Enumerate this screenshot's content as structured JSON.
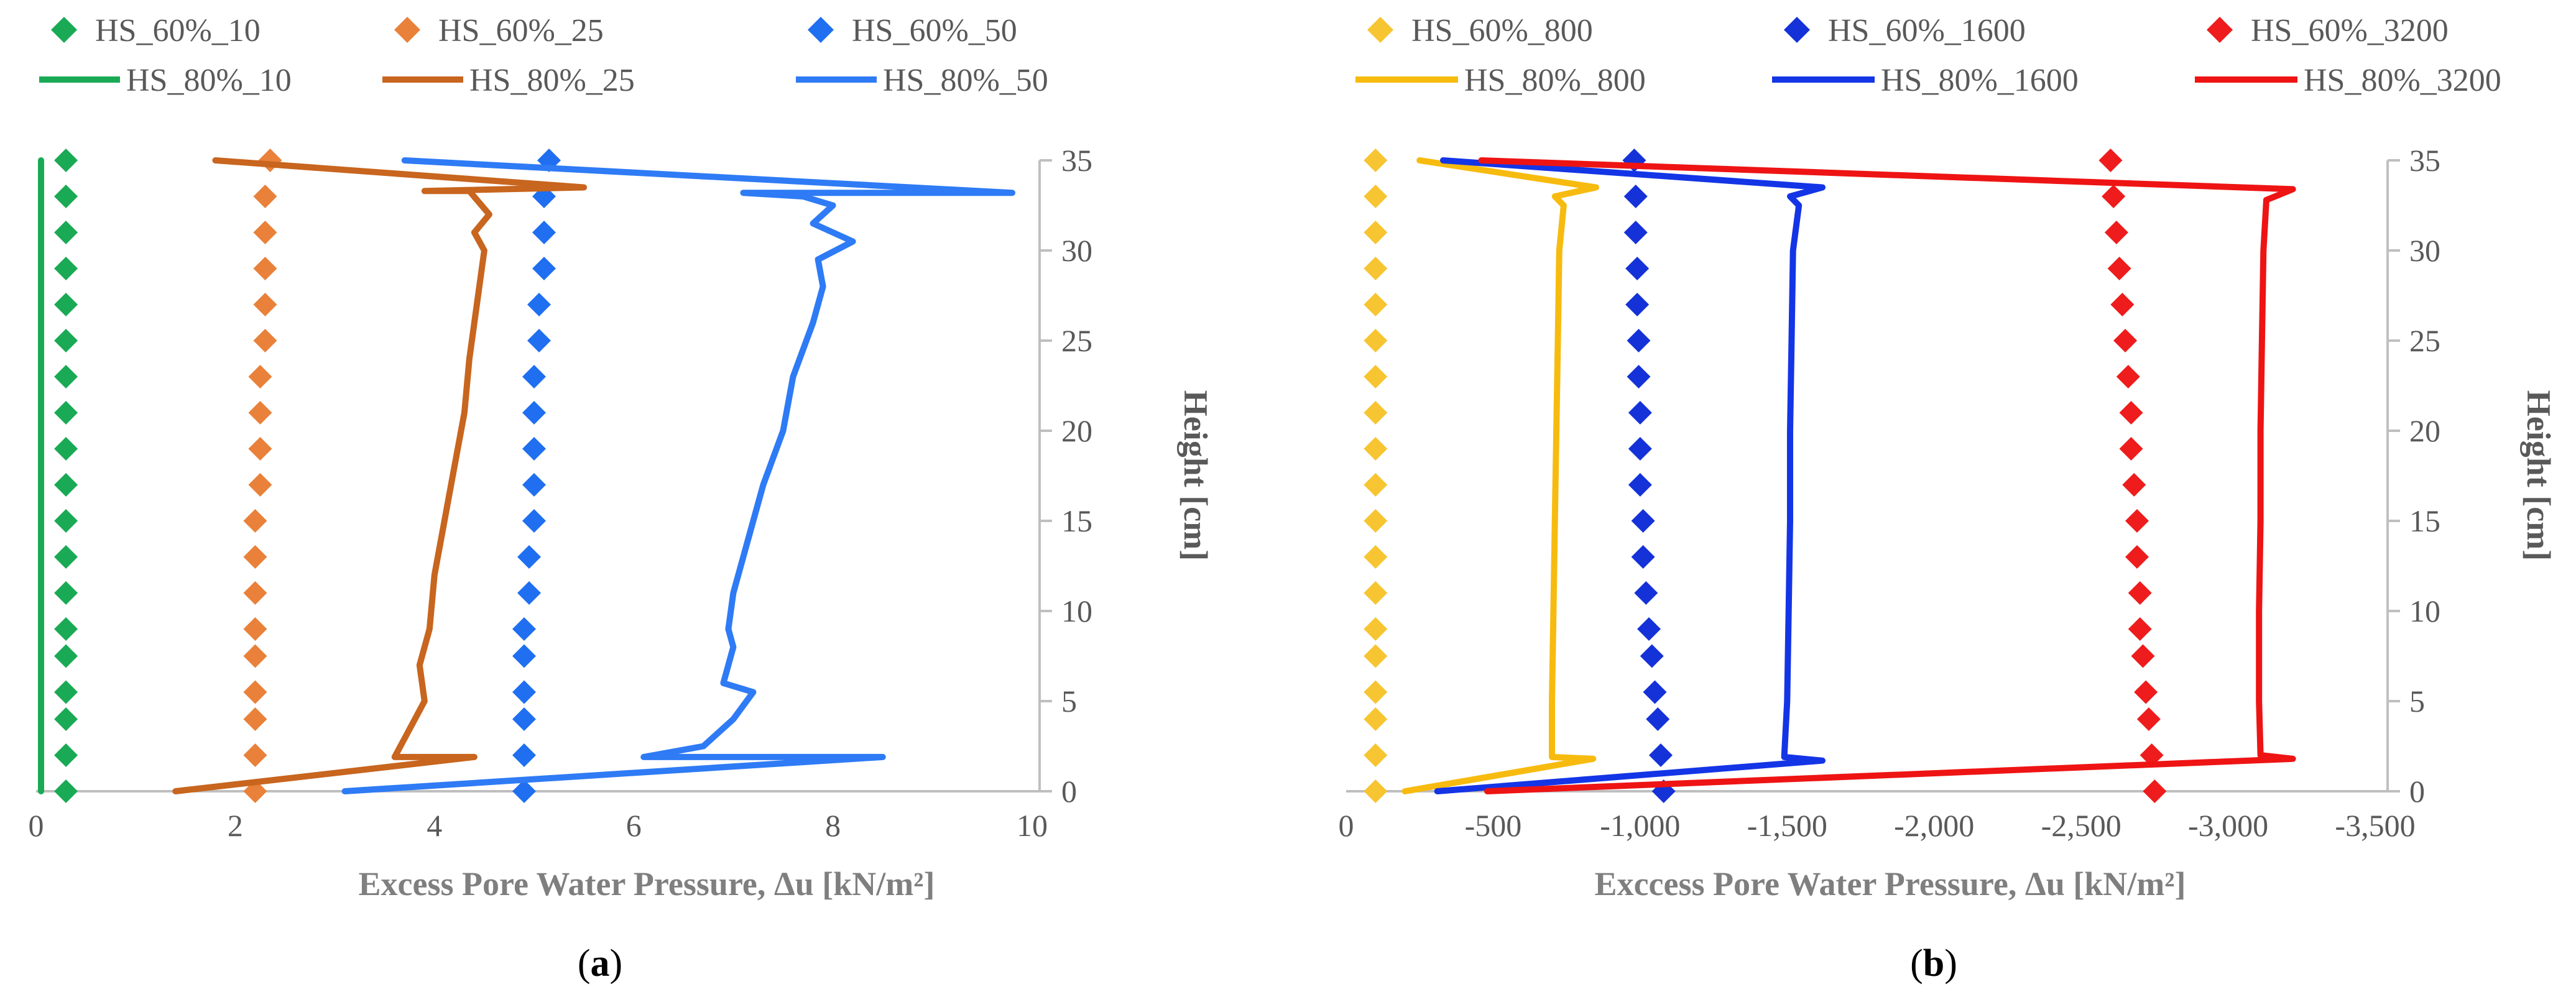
{
  "chart_data": [
    {
      "type": "scatter+line",
      "panel_label": "a",
      "xlabel": "Excess Pore Water Pressure, Δu [kN/m²]",
      "ylabel": "Height [cm]",
      "xlim": [
        0,
        10
      ],
      "ylim": [
        0,
        35
      ],
      "xticks": [
        "0",
        "2",
        "4",
        "6",
        "8",
        "10"
      ],
      "yticks": [
        "0",
        "5",
        "10",
        "15",
        "20",
        "25",
        "30",
        "35"
      ],
      "y_axis_side": "right",
      "grid": false,
      "legend": [
        {
          "name": "HS_60%_10",
          "kind": "marker",
          "color": "#1aaa55"
        },
        {
          "name": "HS_60%_25",
          "kind": "marker",
          "color": "#e9813a"
        },
        {
          "name": "HS_60%_50",
          "kind": "marker",
          "color": "#1f6ff0"
        },
        {
          "name": "HS_80%_10",
          "kind": "line",
          "color": "#1aaa55"
        },
        {
          "name": "HS_80%_25",
          "kind": "line",
          "color": "#c8651e"
        },
        {
          "name": "HS_80%_50",
          "kind": "line",
          "color": "#2e7bf5"
        }
      ],
      "series": [
        {
          "name": "HS_60%_10",
          "kind": "marker",
          "color": "#1aaa55",
          "points": [
            [
              0.3,
              0
            ],
            [
              0.3,
              2
            ],
            [
              0.3,
              4
            ],
            [
              0.3,
              5.5
            ],
            [
              0.3,
              7.5
            ],
            [
              0.3,
              9
            ],
            [
              0.3,
              11
            ],
            [
              0.3,
              13
            ],
            [
              0.3,
              15
            ],
            [
              0.3,
              17
            ],
            [
              0.3,
              19
            ],
            [
              0.3,
              21
            ],
            [
              0.3,
              23
            ],
            [
              0.3,
              25
            ],
            [
              0.3,
              27
            ],
            [
              0.3,
              29
            ],
            [
              0.3,
              31
            ],
            [
              0.3,
              33
            ],
            [
              0.3,
              35
            ]
          ]
        },
        {
          "name": "HS_60%_25",
          "kind": "marker",
          "color": "#e9813a",
          "points": [
            [
              2.2,
              0
            ],
            [
              2.2,
              2
            ],
            [
              2.2,
              4
            ],
            [
              2.2,
              5.5
            ],
            [
              2.2,
              7.5
            ],
            [
              2.2,
              9
            ],
            [
              2.2,
              11
            ],
            [
              2.2,
              13
            ],
            [
              2.2,
              15
            ],
            [
              2.25,
              17
            ],
            [
              2.25,
              19
            ],
            [
              2.25,
              21
            ],
            [
              2.25,
              23
            ],
            [
              2.3,
              25
            ],
            [
              2.3,
              27
            ],
            [
              2.3,
              29
            ],
            [
              2.3,
              31
            ],
            [
              2.3,
              33
            ],
            [
              2.35,
              35
            ]
          ]
        },
        {
          "name": "HS_60%_50",
          "kind": "marker",
          "color": "#1f6ff0",
          "points": [
            [
              4.9,
              0
            ],
            [
              4.9,
              2
            ],
            [
              4.9,
              4
            ],
            [
              4.9,
              5.5
            ],
            [
              4.9,
              7.5
            ],
            [
              4.9,
              9
            ],
            [
              4.95,
              11
            ],
            [
              4.95,
              13
            ],
            [
              5.0,
              15
            ],
            [
              5.0,
              17
            ],
            [
              5.0,
              19
            ],
            [
              5.0,
              21
            ],
            [
              5.0,
              23
            ],
            [
              5.05,
              25
            ],
            [
              5.05,
              27
            ],
            [
              5.1,
              29
            ],
            [
              5.1,
              31
            ],
            [
              5.1,
              33
            ],
            [
              5.15,
              35
            ]
          ]
        },
        {
          "name": "HS_80%_10",
          "kind": "line",
          "color": "#1aaa55",
          "points": [
            [
              0.05,
              0
            ],
            [
              0.05,
              35
            ]
          ]
        },
        {
          "name": "HS_80%_25",
          "kind": "line",
          "color": "#c8651e",
          "points": [
            [
              1.4,
              0
            ],
            [
              4.4,
              1.9
            ],
            [
              3.6,
              1.9
            ],
            [
              3.9,
              5
            ],
            [
              3.85,
              7
            ],
            [
              3.95,
              9
            ],
            [
              4.0,
              12
            ],
            [
              4.1,
              15
            ],
            [
              4.2,
              18
            ],
            [
              4.3,
              21
            ],
            [
              4.35,
              24
            ],
            [
              4.4,
              26
            ],
            [
              4.45,
              28
            ],
            [
              4.5,
              30
            ],
            [
              4.4,
              31
            ],
            [
              4.55,
              32
            ],
            [
              4.35,
              33.3
            ],
            [
              3.9,
              33.3
            ],
            [
              5.5,
              33.5
            ],
            [
              1.8,
              35
            ]
          ]
        },
        {
          "name": "HS_80%_50",
          "kind": "line",
          "color": "#2e7bf5",
          "points": [
            [
              3.1,
              0
            ],
            [
              8.5,
              1.9
            ],
            [
              6.1,
              1.9
            ],
            [
              6.7,
              2.5
            ],
            [
              7.0,
              4
            ],
            [
              7.2,
              5.5
            ],
            [
              6.9,
              6
            ],
            [
              7.0,
              8
            ],
            [
              6.95,
              9
            ],
            [
              7.0,
              11
            ],
            [
              7.15,
              14
            ],
            [
              7.3,
              17
            ],
            [
              7.5,
              20
            ],
            [
              7.6,
              23
            ],
            [
              7.8,
              26
            ],
            [
              7.9,
              28
            ],
            [
              7.85,
              29.5
            ],
            [
              8.2,
              30.5
            ],
            [
              7.8,
              31.5
            ],
            [
              8.0,
              32.5
            ],
            [
              7.7,
              33
            ],
            [
              7.1,
              33.2
            ],
            [
              9.8,
              33.2
            ],
            [
              3.7,
              35
            ]
          ]
        }
      ]
    },
    {
      "type": "scatter+line",
      "panel_label": "b",
      "xlabel": "Exccess Pore Water Pressure, Δu [kN/m²]",
      "ylabel": "Height [cm]",
      "xlim": [
        0,
        -3500
      ],
      "ylim": [
        0,
        35
      ],
      "xticks": [
        "0",
        "-500",
        "-1,000",
        "-1,500",
        "-2,000",
        "-2,500",
        "-3,000",
        "-3,500"
      ],
      "yticks": [
        "0",
        "5",
        "10",
        "15",
        "20",
        "25",
        "30",
        "35"
      ],
      "y_axis_side": "right",
      "grid": false,
      "legend": [
        {
          "name": "HS_60%_800",
          "kind": "marker",
          "color": "#f7c531"
        },
        {
          "name": "HS_60%_1600",
          "kind": "marker",
          "color": "#1432d8"
        },
        {
          "name": "HS_60%_3200",
          "kind": "marker",
          "color": "#ee1c1c"
        },
        {
          "name": "HS_80%_800",
          "kind": "line",
          "color": "#f7bb0f"
        },
        {
          "name": "HS_80%_1600",
          "kind": "line",
          "color": "#1435e6"
        },
        {
          "name": "HS_80%_3200",
          "kind": "line",
          "color": "#ee1414"
        }
      ],
      "series": [
        {
          "name": "HS_60%_800",
          "kind": "marker",
          "color": "#f7c531",
          "points": [
            [
              -100,
              0
            ],
            [
              -100,
              2
            ],
            [
              -100,
              4
            ],
            [
              -100,
              5.5
            ],
            [
              -100,
              7.5
            ],
            [
              -100,
              9
            ],
            [
              -100,
              11
            ],
            [
              -100,
              13
            ],
            [
              -100,
              15
            ],
            [
              -100,
              17
            ],
            [
              -100,
              19
            ],
            [
              -100,
              21
            ],
            [
              -100,
              23
            ],
            [
              -100,
              25
            ],
            [
              -100,
              27
            ],
            [
              -100,
              29
            ],
            [
              -100,
              31
            ],
            [
              -100,
              33
            ],
            [
              -100,
              35
            ]
          ]
        },
        {
          "name": "HS_60%_1600",
          "kind": "marker",
          "color": "#1432d8",
          "points": [
            [
              -1080,
              0
            ],
            [
              -1070,
              2
            ],
            [
              -1060,
              4
            ],
            [
              -1050,
              5.5
            ],
            [
              -1040,
              7.5
            ],
            [
              -1030,
              9
            ],
            [
              -1020,
              11
            ],
            [
              -1010,
              13
            ],
            [
              -1010,
              15
            ],
            [
              -1000,
              17
            ],
            [
              -1000,
              19
            ],
            [
              -1000,
              21
            ],
            [
              -995,
              23
            ],
            [
              -995,
              25
            ],
            [
              -990,
              27
            ],
            [
              -990,
              29
            ],
            [
              -985,
              31
            ],
            [
              -985,
              33
            ],
            [
              -980,
              35
            ]
          ]
        },
        {
          "name": "HS_60%_3200",
          "kind": "marker",
          "color": "#ee1c1c",
          "points": [
            [
              -2750,
              0
            ],
            [
              -2740,
              2
            ],
            [
              -2730,
              4
            ],
            [
              -2720,
              5.5
            ],
            [
              -2710,
              7.5
            ],
            [
              -2700,
              9
            ],
            [
              -2700,
              11
            ],
            [
              -2690,
              13
            ],
            [
              -2690,
              15
            ],
            [
              -2680,
              17
            ],
            [
              -2670,
              19
            ],
            [
              -2670,
              21
            ],
            [
              -2660,
              23
            ],
            [
              -2650,
              25
            ],
            [
              -2640,
              27
            ],
            [
              -2630,
              29
            ],
            [
              -2620,
              31
            ],
            [
              -2610,
              33
            ],
            [
              -2600,
              35
            ]
          ]
        },
        {
          "name": "HS_80%_800",
          "kind": "line",
          "color": "#f7bb0f",
          "points": [
            [
              -200,
              0
            ],
            [
              -840,
              1.8
            ],
            [
              -700,
              1.9
            ],
            [
              -700,
              5
            ],
            [
              -705,
              10
            ],
            [
              -710,
              15
            ],
            [
              -715,
              20
            ],
            [
              -720,
              25
            ],
            [
              -725,
              30
            ],
            [
              -740,
              32.5
            ],
            [
              -710,
              33
            ],
            [
              -850,
              33.5
            ],
            [
              -250,
              35
            ]
          ]
        },
        {
          "name": "HS_80%_1600",
          "kind": "line",
          "color": "#1435e6",
          "points": [
            [
              -310,
              0
            ],
            [
              -1620,
              1.7
            ],
            [
              -1490,
              1.9
            ],
            [
              -1500,
              5
            ],
            [
              -1505,
              10
            ],
            [
              -1510,
              15
            ],
            [
              -1510,
              20
            ],
            [
              -1515,
              25
            ],
            [
              -1520,
              30
            ],
            [
              -1540,
              32.5
            ],
            [
              -1510,
              33
            ],
            [
              -1620,
              33.5
            ],
            [
              -330,
              35
            ]
          ]
        },
        {
          "name": "HS_80%_3200",
          "kind": "line",
          "color": "#ee1414",
          "points": [
            [
              -480,
              0
            ],
            [
              -3220,
              1.8
            ],
            [
              -3110,
              2
            ],
            [
              -3105,
              5
            ],
            [
              -3105,
              10
            ],
            [
              -3110,
              15
            ],
            [
              -3110,
              20
            ],
            [
              -3115,
              25
            ],
            [
              -3120,
              30
            ],
            [
              -3130,
              32.8
            ],
            [
              -3220,
              33.4
            ],
            [
              -460,
              35
            ]
          ]
        }
      ]
    }
  ]
}
